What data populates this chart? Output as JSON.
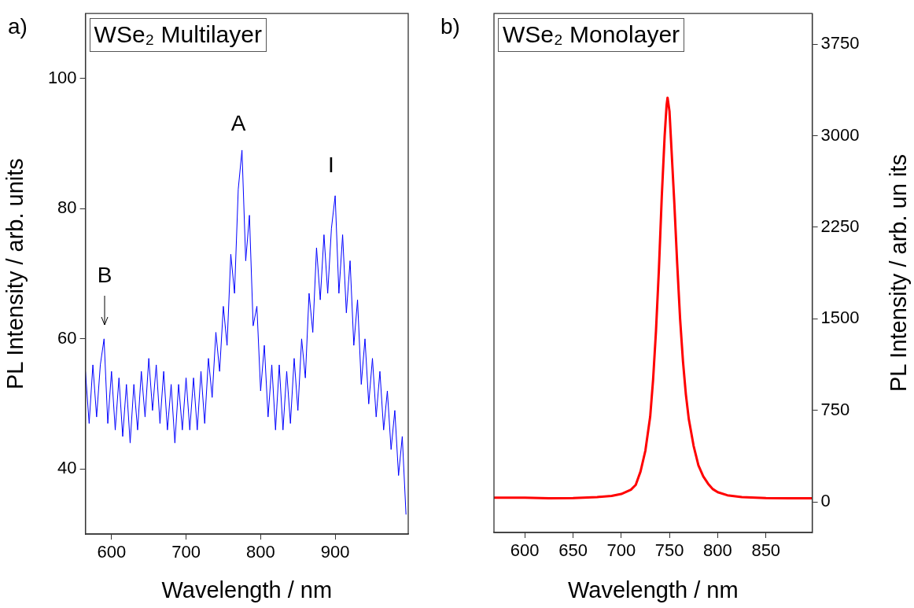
{
  "chart_data": [
    {
      "type": "line",
      "title": "WSe₂ Multilayer",
      "xlabel": "Wavelength / nm",
      "ylabel": "PL Intensity / arb. units",
      "annotations": [
        "a)",
        "A",
        "I",
        "B"
      ],
      "x": [
        565,
        570,
        575,
        580,
        585,
        590,
        595,
        600,
        605,
        610,
        615,
        620,
        625,
        630,
        635,
        640,
        645,
        650,
        655,
        660,
        665,
        670,
        675,
        680,
        685,
        690,
        695,
        700,
        705,
        710,
        715,
        720,
        725,
        730,
        735,
        740,
        745,
        750,
        755,
        760,
        765,
        770,
        775,
        780,
        785,
        790,
        795,
        800,
        805,
        810,
        815,
        820,
        825,
        830,
        835,
        840,
        845,
        850,
        855,
        860,
        865,
        870,
        875,
        880,
        885,
        890,
        895,
        900,
        905,
        910,
        915,
        920,
        925,
        930,
        935,
        940,
        945,
        950,
        955,
        960,
        965,
        970,
        975,
        980,
        985,
        990,
        995
      ],
      "series": [
        {
          "color": "#0000ff",
          "values": [
            55,
            47,
            56,
            48,
            56,
            60,
            47,
            55,
            46,
            54,
            45,
            53,
            44,
            53,
            46,
            55,
            48,
            57,
            49,
            56,
            47,
            55,
            46,
            53,
            44,
            53,
            46,
            54,
            46,
            54,
            46,
            55,
            47,
            57,
            51,
            61,
            55,
            65,
            59,
            73,
            67,
            83,
            89,
            72,
            79,
            62,
            65,
            52,
            59,
            48,
            56,
            46,
            56,
            46,
            55,
            47,
            57,
            49,
            60,
            54,
            67,
            61,
            74,
            66,
            76,
            67,
            77,
            82,
            67,
            76,
            64,
            72,
            59,
            66,
            53,
            60,
            50,
            57,
            48,
            55,
            46,
            52,
            43,
            49,
            39,
            45,
            33
          ]
        }
      ],
      "xlim": [
        565,
        998
      ],
      "ylim": [
        30,
        110
      ],
      "xticks": [
        600,
        700,
        800,
        900
      ],
      "yticks": [
        40,
        60,
        80,
        100
      ]
    },
    {
      "type": "line",
      "title": "WSe₂ Monolayer",
      "xlabel": "Wavelength / nm",
      "y2label": "PL Intensity / arb. un its",
      "annotations": [
        "b)"
      ],
      "x": [
        568,
        600,
        625,
        650,
        675,
        690,
        700,
        710,
        715,
        720,
        725,
        730,
        733,
        736,
        739,
        742,
        745,
        747,
        748,
        750,
        752,
        755,
        758,
        761,
        764,
        767,
        770,
        775,
        780,
        785,
        790,
        795,
        800,
        810,
        825,
        850,
        875,
        898
      ],
      "series": [
        {
          "color": "#ff0000",
          "axis": "y2",
          "values": [
            35,
            35,
            30,
            32,
            40,
            50,
            65,
            100,
            140,
            250,
            420,
            700,
            1000,
            1400,
            1900,
            2500,
            3000,
            3250,
            3310,
            3200,
            2900,
            2450,
            1950,
            1500,
            1150,
            880,
            680,
            460,
            300,
            210,
            150,
            105,
            80,
            55,
            40,
            32,
            30,
            30
          ]
        }
      ],
      "xlim": [
        568,
        898
      ],
      "y2lim": [
        -250,
        4000
      ],
      "xticks": [
        600,
        650,
        700,
        750,
        800,
        850
      ],
      "y2ticks": [
        0,
        750,
        1500,
        2250,
        3000,
        3750
      ]
    }
  ]
}
